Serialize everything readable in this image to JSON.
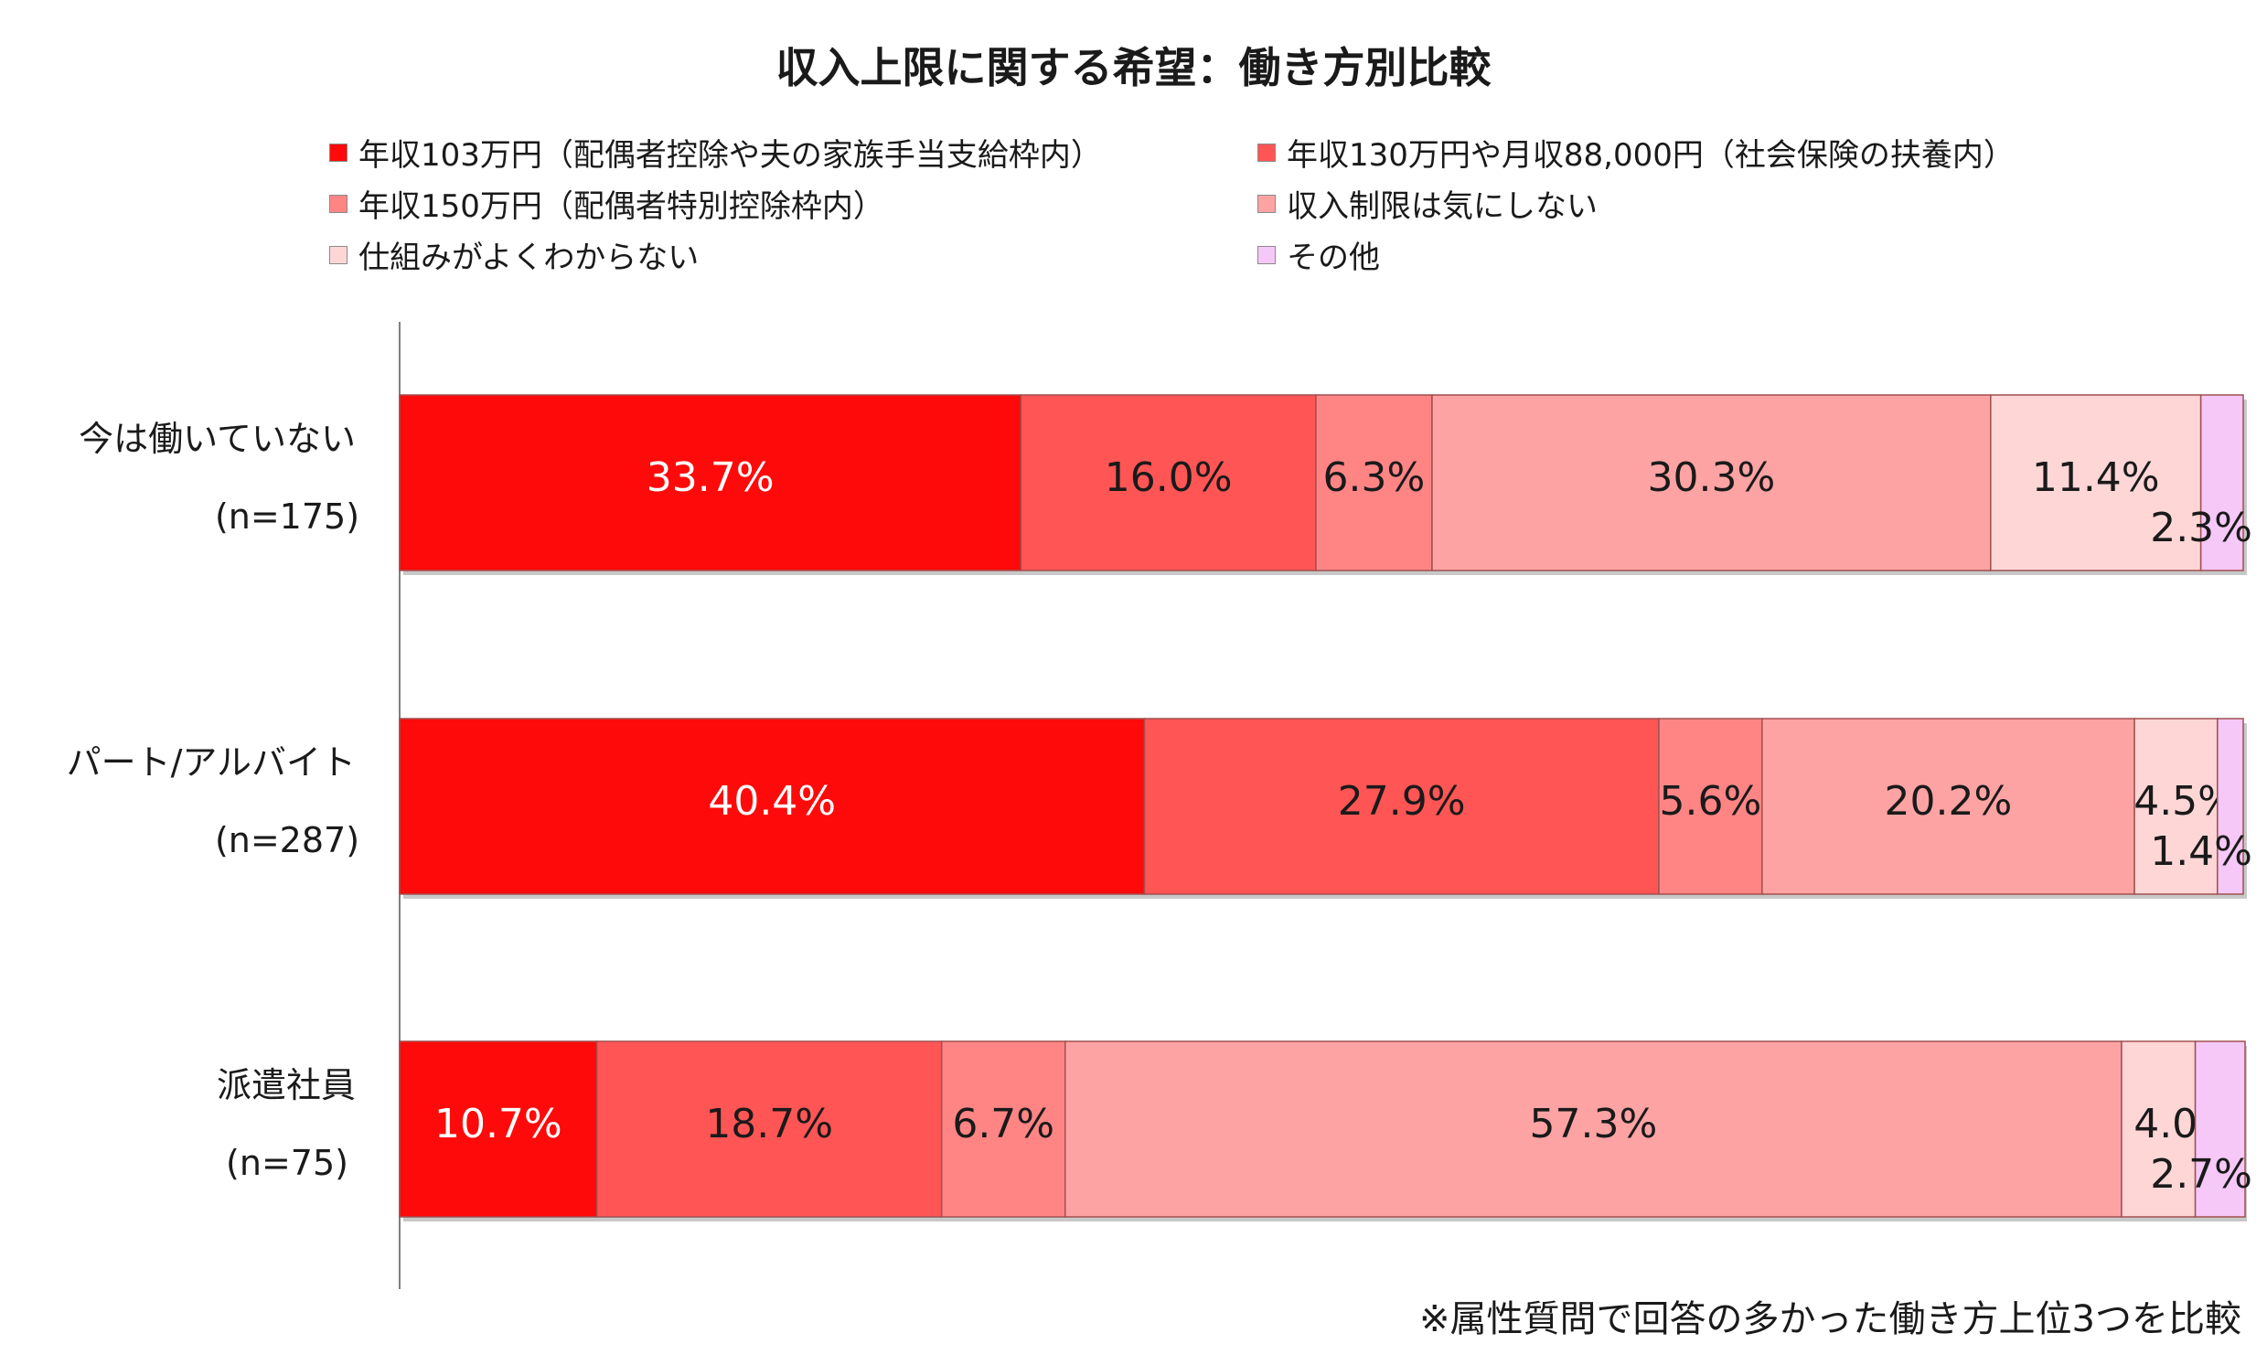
{
  "chart_data": {
    "type": "bar",
    "orientation": "horizontal",
    "stacked": true,
    "title": "収入上限に関する希望：働き方別比較",
    "note": "※属性質問で回答の多かった働き方上位3つを比較",
    "categories": [
      {
        "label": "今は働いていない",
        "n": "(n=175)"
      },
      {
        "label": "パート/アルバイト",
        "n": "(n=287)"
      },
      {
        "label": "派遣社員",
        "n": "(n=75)"
      }
    ],
    "series": [
      {
        "name": "年収103万円（配偶者控除や夫の家族手当支給枠内）",
        "color": "#ff0a0a",
        "label_color": "#ffffff",
        "values": [
          33.7,
          40.4,
          10.7
        ],
        "labels": [
          "33.7%",
          "40.4%",
          "10.7%"
        ]
      },
      {
        "name": "年収130万円や月収88,000円（社会保険の扶養内）",
        "color": "#ff5555",
        "label_color": "#1a1a1a",
        "values": [
          16.0,
          27.9,
          18.7
        ],
        "labels": [
          "16.0%",
          "27.9%",
          "18.7%"
        ]
      },
      {
        "name": "年収150万円（配偶者特別控除枠内）",
        "color": "#ff8585",
        "label_color": "#1a1a1a",
        "values": [
          6.3,
          5.6,
          6.7
        ],
        "labels": [
          "6.3%",
          "5.6%",
          "6.7%"
        ]
      },
      {
        "name": "収入制限は気にしない",
        "color": "#fda3a3",
        "label_color": "#1a1a1a",
        "values": [
          30.3,
          20.2,
          57.3
        ],
        "labels": [
          "30.3%",
          "20.2%",
          "57.3%"
        ]
      },
      {
        "name": "仕組みがよくわからない",
        "color": "#ffd6d6",
        "label_color": "#1a1a1a",
        "values": [
          11.4,
          4.5,
          4.0
        ],
        "labels": [
          "11.4%",
          "4.5%",
          "4.0%"
        ]
      },
      {
        "name": "その他",
        "color": "#f5c8f7",
        "label_color": "#1a1a1a",
        "values": [
          2.3,
          1.4,
          2.7
        ],
        "labels": [
          "2.3%",
          "1.4%",
          "2.7%"
        ]
      }
    ],
    "xlim": [
      0,
      100
    ],
    "grid": false,
    "legend_position": "top"
  }
}
